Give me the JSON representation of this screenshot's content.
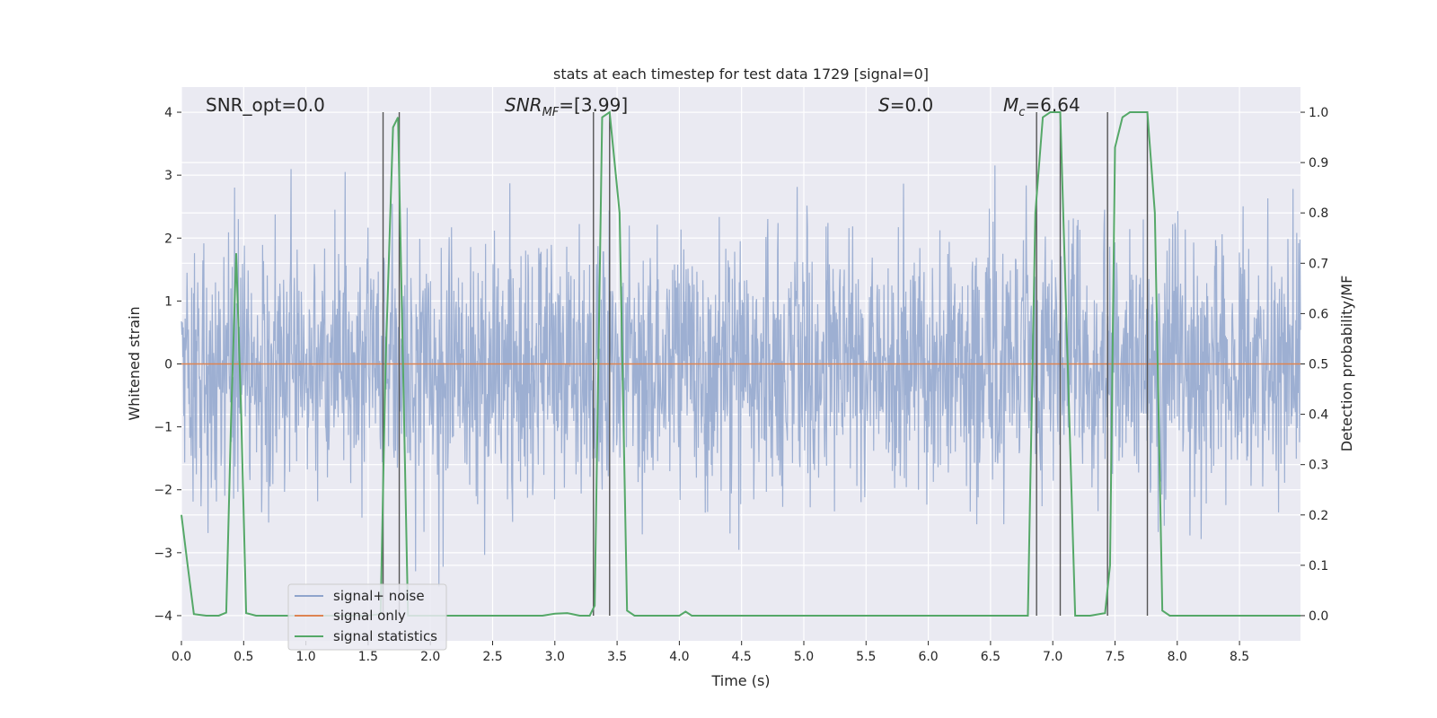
{
  "chart_data": {
    "type": "line",
    "title": "stats at each timestep for test data 1729 [signal=0]",
    "xlabel": "Time (s)",
    "ylabel": "Whitened strain",
    "ylabel_right": "Detection probability/MF",
    "xlim": [
      0.0,
      8.99
    ],
    "ylim": [
      -4.4,
      4.4
    ],
    "ylim_right": [
      -0.05,
      1.05
    ],
    "xticks": [
      "0.0",
      "0.5",
      "1.0",
      "1.5",
      "2.0",
      "2.5",
      "3.0",
      "3.5",
      "4.0",
      "4.5",
      "5.0",
      "5.5",
      "6.0",
      "6.5",
      "7.0",
      "7.5",
      "8.0",
      "8.5"
    ],
    "yticks": [
      "−4",
      "−3",
      "−2",
      "−1",
      "0",
      "1",
      "2",
      "3",
      "4"
    ],
    "yticks_right": [
      "0.0",
      "0.1",
      "0.2",
      "0.3",
      "0.4",
      "0.5",
      "0.6",
      "0.7",
      "0.8",
      "0.9",
      "1.0"
    ],
    "grid": true,
    "legend_position": "lower-left",
    "annotations": [
      {
        "id": "snr_opt",
        "text": "SNR_opt=0.0"
      },
      {
        "id": "snr_mf",
        "base": "SNR",
        "sub": "MF",
        "rest": "=[3.99]"
      },
      {
        "id": "s",
        "base": "S",
        "rest": "=0.0"
      },
      {
        "id": "mc",
        "base": "M",
        "sub": "c",
        "rest": "=6.64"
      }
    ],
    "series": [
      {
        "name": "signal+ noise",
        "color": "#8fa4cc",
        "kind": "white-noise",
        "std": 1.0,
        "range": [
          -4.0,
          4.0
        ]
      },
      {
        "name": "signal only",
        "color": "#dd8452",
        "kind": "constant",
        "value": 0.0
      },
      {
        "name": "signal statistics",
        "color": "#55a868",
        "axis": "right",
        "x": [
          0.0,
          0.05,
          0.1,
          0.2,
          0.3,
          0.36,
          0.4,
          0.44,
          0.48,
          0.52,
          0.6,
          1.0,
          1.5,
          1.6,
          1.64,
          1.7,
          1.74,
          1.78,
          1.82,
          1.9,
          2.2,
          2.6,
          2.9,
          3.0,
          3.1,
          3.2,
          3.28,
          3.32,
          3.38,
          3.44,
          3.52,
          3.58,
          3.64,
          3.7,
          3.9,
          4.0,
          4.05,
          4.1,
          4.3,
          5.0,
          6.0,
          6.5,
          6.8,
          6.86,
          6.92,
          6.98,
          7.06,
          7.12,
          7.18,
          7.3,
          7.42,
          7.46,
          7.5,
          7.56,
          7.62,
          7.68,
          7.76,
          7.82,
          7.88,
          7.94,
          8.0,
          8.99
        ],
        "y": [
          0.2,
          0.1,
          0.003,
          0.0,
          0.0,
          0.006,
          0.4,
          0.72,
          0.4,
          0.005,
          0.0,
          0.0,
          0.0,
          0.003,
          0.5,
          0.97,
          0.99,
          0.5,
          0.0,
          0.0,
          0.0,
          0.0,
          0.0,
          0.004,
          0.005,
          0.0,
          0.0,
          0.02,
          0.99,
          1.0,
          0.8,
          0.01,
          0.0,
          0.0,
          0.0,
          0.0,
          0.008,
          0.0,
          0.0,
          0.0,
          0.0,
          0.0,
          0.0,
          0.8,
          0.99,
          1.0,
          1.0,
          0.5,
          0.0,
          0.0,
          0.005,
          0.1,
          0.93,
          0.99,
          1.0,
          1.0,
          1.0,
          0.8,
          0.01,
          0.0,
          0.0,
          0.0
        ]
      }
    ],
    "vertical_lines": [
      1.62,
      1.75,
      3.31,
      3.44,
      6.87,
      7.06,
      7.44,
      7.76
    ]
  }
}
